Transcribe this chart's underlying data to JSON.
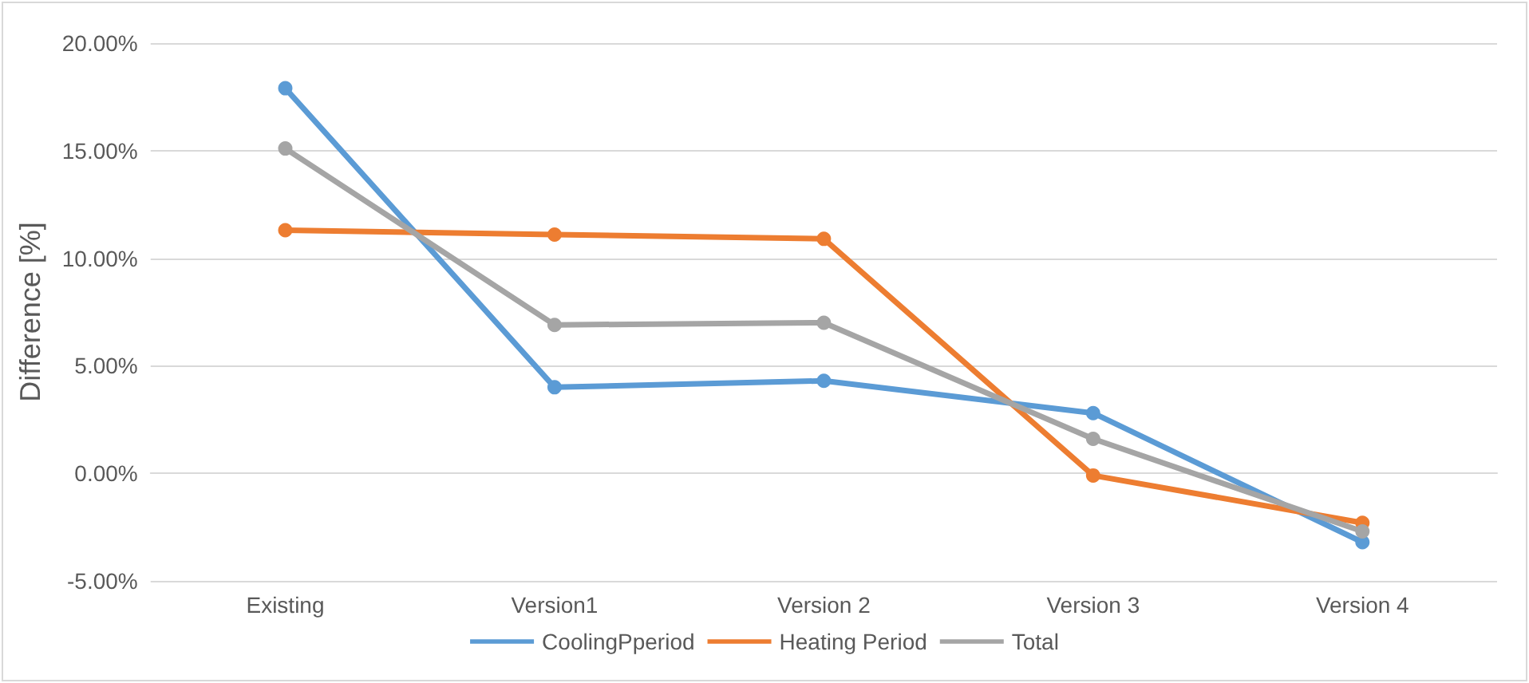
{
  "chart_data": {
    "type": "line",
    "ylabel": "Difference [%]",
    "categories": [
      "Existing",
      "Version1",
      "Version 2",
      "Version 3",
      "Version 4"
    ],
    "series": [
      {
        "name": "CoolingPperiod",
        "color": "#5b9bd5",
        "values": [
          17.9,
          4.0,
          4.3,
          2.8,
          -3.2
        ]
      },
      {
        "name": "Heating Period",
        "color": "#ed7d31",
        "values": [
          11.3,
          11.1,
          10.9,
          -0.1,
          -2.3
        ]
      },
      {
        "name": "Total",
        "color": "#a5a5a5",
        "values": [
          15.1,
          6.9,
          7.0,
          1.6,
          -2.7
        ]
      }
    ],
    "ylim": [
      -5,
      20
    ],
    "yticks": [
      {
        "value": -5,
        "label": "-5.00%"
      },
      {
        "value": 0,
        "label": "0.00%"
      },
      {
        "value": 5,
        "label": "5.00%"
      },
      {
        "value": 10,
        "label": "10.00%"
      },
      {
        "value": 15,
        "label": "15.00%"
      },
      {
        "value": 20,
        "label": "20.00%"
      }
    ],
    "grid": "y",
    "legend": "bottom",
    "marker": "circle",
    "line_style": "solid"
  }
}
